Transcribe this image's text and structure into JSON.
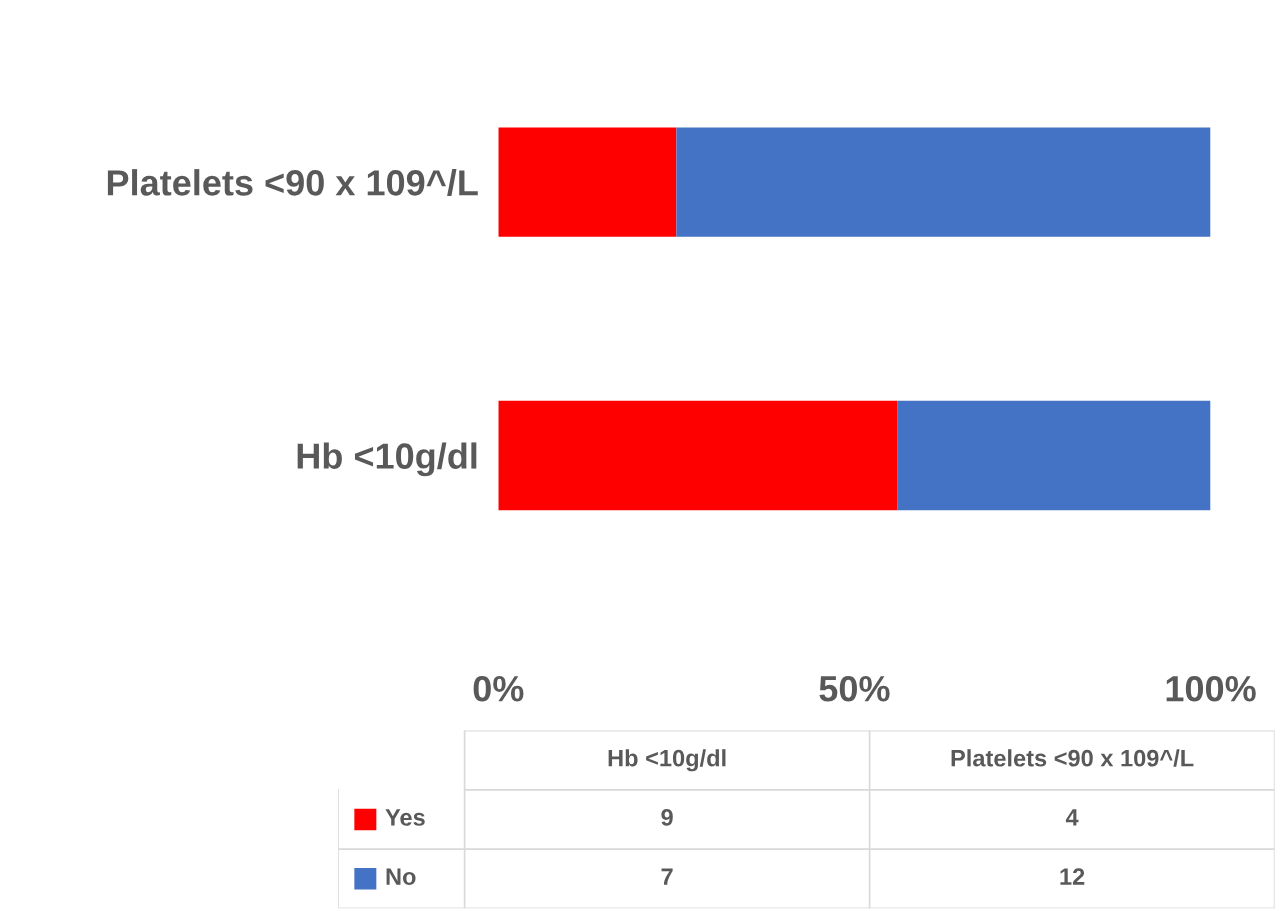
{
  "chart_data": {
    "type": "bar",
    "orientation": "horizontal",
    "stacked": true,
    "categories": [
      "Platelets <90 x 109^/L",
      "Hb <10g/dl"
    ],
    "series": [
      {
        "name": "Yes",
        "color": "#ff0000",
        "values": [
          25,
          56
        ]
      },
      {
        "name": "No",
        "color": "#4472c4",
        "values": [
          75,
          44
        ]
      }
    ],
    "annotations": [
      "9",
      "4",
      "7",
      "12"
    ],
    "xlim": [
      0,
      100
    ],
    "xticks": [
      {
        "value": 0,
        "label": "0%"
      },
      {
        "value": 50,
        "label": "50%"
      },
      {
        "value": 100,
        "label": "100%"
      }
    ],
    "grid": false,
    "legend": "bottom"
  }
}
